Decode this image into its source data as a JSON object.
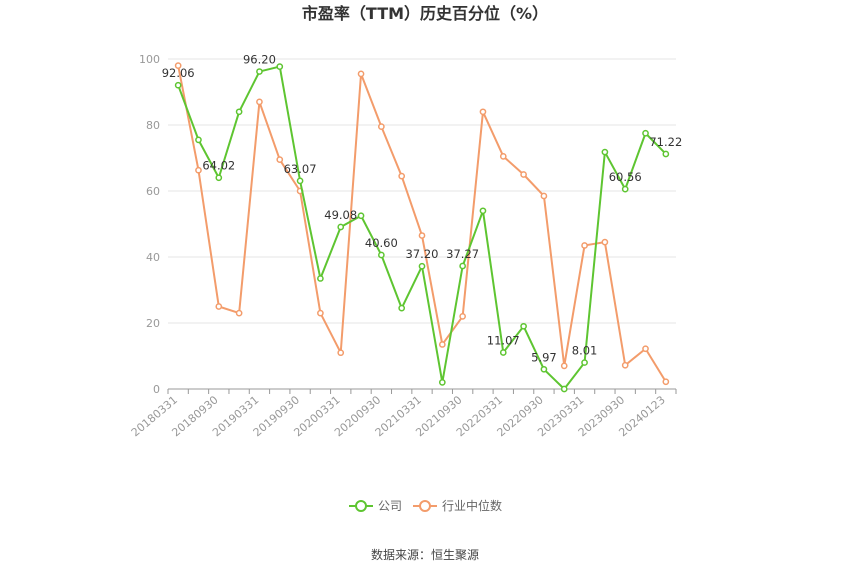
{
  "chart_data": {
    "type": "line",
    "title": "市盈率（TTM）历史百分位（%）",
    "source": "数据来源：恒生聚源",
    "ylim": [
      0,
      100
    ],
    "y_ticks": [
      "0",
      "20",
      "40",
      "60",
      "80",
      "100"
    ],
    "x_tick_labels": [
      "20180331",
      "20180930",
      "20190331",
      "20190930",
      "20200331",
      "20200930",
      "20210331",
      "20210930",
      "20220331",
      "20220930",
      "20230331",
      "20230930",
      "20240123"
    ],
    "x": [
      "20180331",
      "20180630",
      "20180930",
      "20181231",
      "20190331",
      "20190630",
      "20190930",
      "20191231",
      "20200331",
      "20200630",
      "20200930",
      "20201231",
      "20210331",
      "20210630",
      "20210930",
      "20211231",
      "20220331",
      "20220630",
      "20220930",
      "20221231",
      "20230331",
      "20230630",
      "20230930",
      "20231231",
      "20240123"
    ],
    "series": [
      {
        "name": "公司",
        "color": "#5ec531",
        "values": [
          92.06,
          75.5,
          64.02,
          84.0,
          96.2,
          97.7,
          63.07,
          33.5,
          49.08,
          52.5,
          40.6,
          24.5,
          37.2,
          2.0,
          37.27,
          54.0,
          11.07,
          19.0,
          5.97,
          0.0,
          8.01,
          71.8,
          60.56,
          77.5,
          71.22
        ]
      },
      {
        "name": "行业中位数",
        "color": "#f39c6b",
        "values": [
          98.0,
          66.3,
          25.0,
          23.0,
          87.0,
          69.5,
          60.0,
          23.0,
          11.0,
          95.5,
          79.5,
          64.5,
          46.5,
          13.5,
          22.0,
          84.0,
          70.5,
          65.0,
          58.5,
          7.0,
          43.5,
          44.5,
          7.2,
          12.2,
          2.2
        ]
      }
    ],
    "data_labels": [
      {
        "index": 0,
        "text": "92.06"
      },
      {
        "index": 2,
        "text": "64.02"
      },
      {
        "index": 4,
        "text": "96.20"
      },
      {
        "index": 6,
        "text": "63.07"
      },
      {
        "index": 8,
        "text": "49.08"
      },
      {
        "index": 10,
        "text": "40.60"
      },
      {
        "index": 12,
        "text": "37.20"
      },
      {
        "index": 14,
        "text": "37.27"
      },
      {
        "index": 16,
        "text": "11.07"
      },
      {
        "index": 18,
        "text": "5.97"
      },
      {
        "index": 20,
        "text": "8.01"
      },
      {
        "index": 22,
        "text": "60.56"
      },
      {
        "index": 24,
        "text": "71.22"
      }
    ],
    "legend_position": "bottom-center",
    "grid": true
  }
}
